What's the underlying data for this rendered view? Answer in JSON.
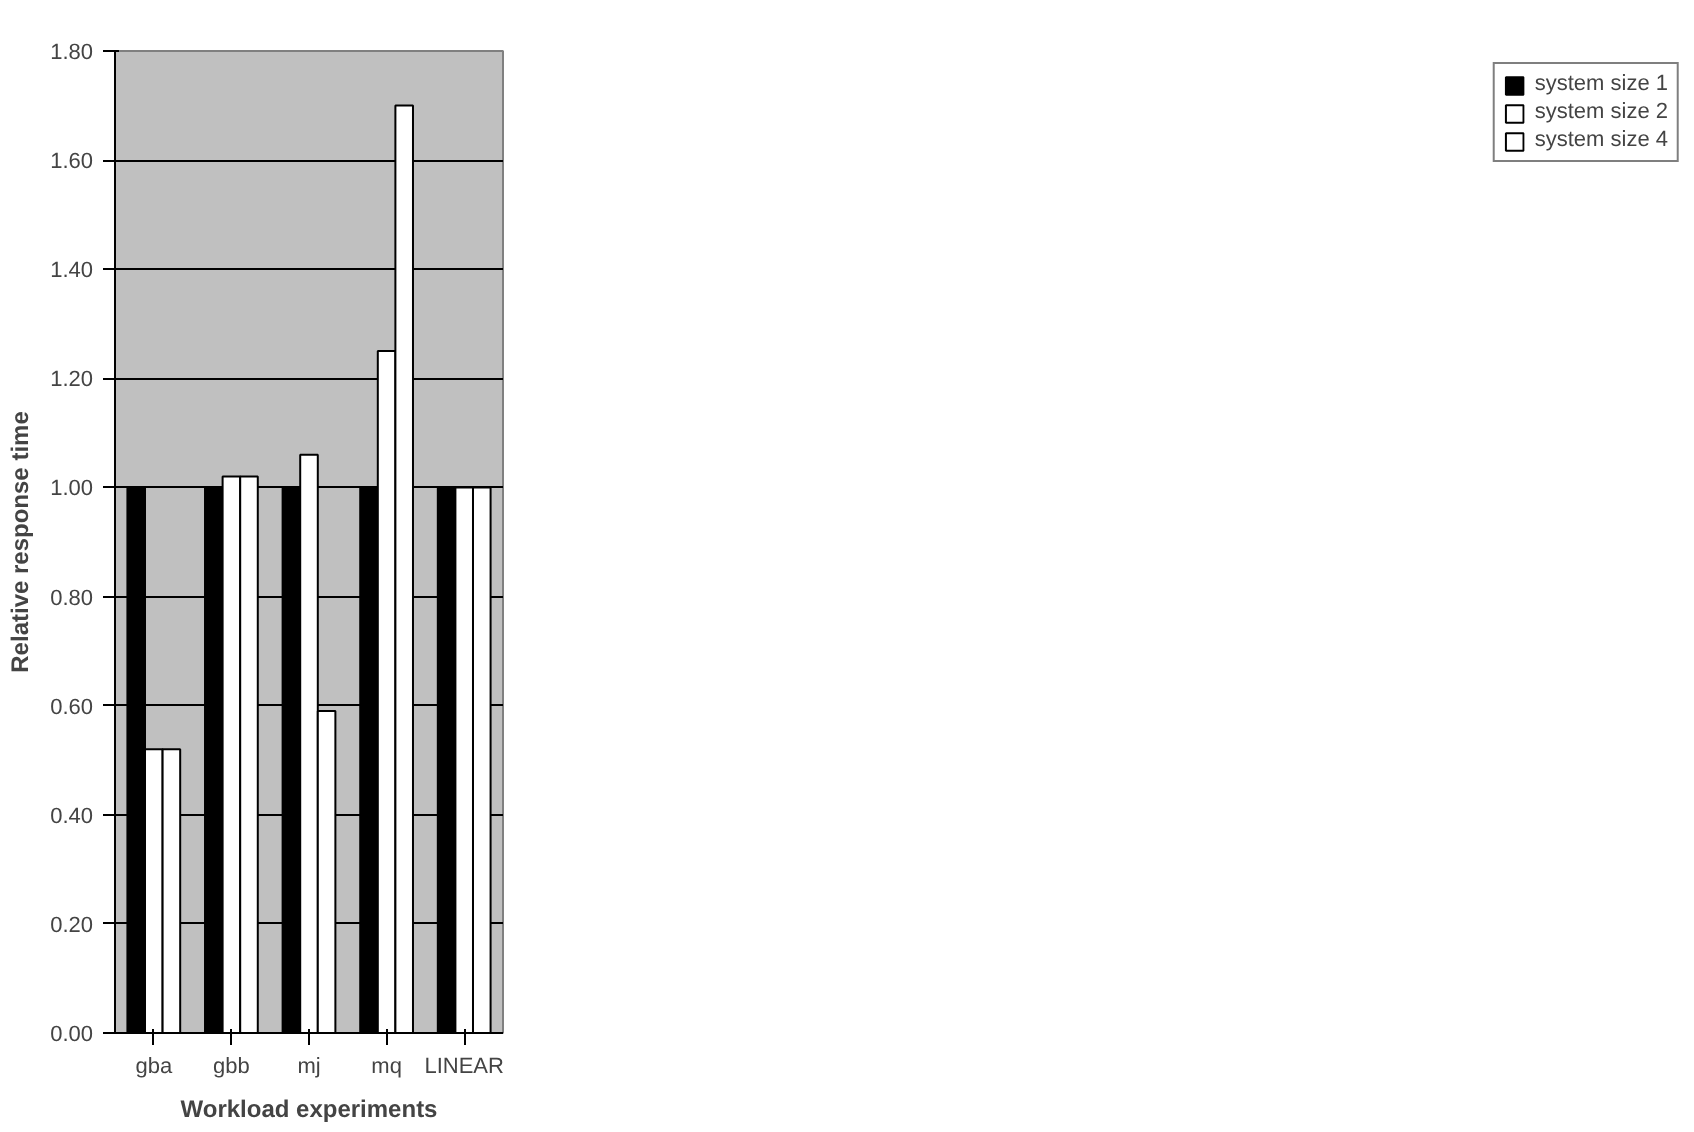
{
  "chart_data": {
    "type": "bar",
    "xlabel": "Workload experiments",
    "ylabel": "Relative response time",
    "categories": [
      "gba",
      "gbb",
      "mj",
      "mq",
      "LINEAR"
    ],
    "series": [
      {
        "name": "system size 1",
        "color": "#000000",
        "values": [
          1.0,
          1.0,
          1.0,
          1.0,
          1.0
        ]
      },
      {
        "name": "system size 2",
        "color": "#ffffff",
        "values": [
          0.52,
          1.02,
          1.06,
          1.25,
          1.0
        ]
      },
      {
        "name": "system size 4",
        "color": "#ffffff",
        "values": [
          0.52,
          1.02,
          0.59,
          1.7,
          1.0
        ]
      }
    ],
    "ylim": [
      0,
      1.8
    ],
    "yticks": [
      {
        "value": 0,
        "label": "0.00"
      },
      {
        "value": 0.2,
        "label": "0.20"
      },
      {
        "value": 0.4,
        "label": "0.40"
      },
      {
        "value": 0.6,
        "label": "0.60"
      },
      {
        "value": 0.8,
        "label": "0.80"
      },
      {
        "value": 1.0,
        "label": "1.00"
      },
      {
        "value": 1.2,
        "label": "1.20"
      },
      {
        "value": 1.4,
        "label": "1.40"
      },
      {
        "value": 1.6,
        "label": "1.60"
      },
      {
        "value": 1.8,
        "label": "1.80"
      }
    ],
    "grid": "y",
    "legend": "right"
  }
}
